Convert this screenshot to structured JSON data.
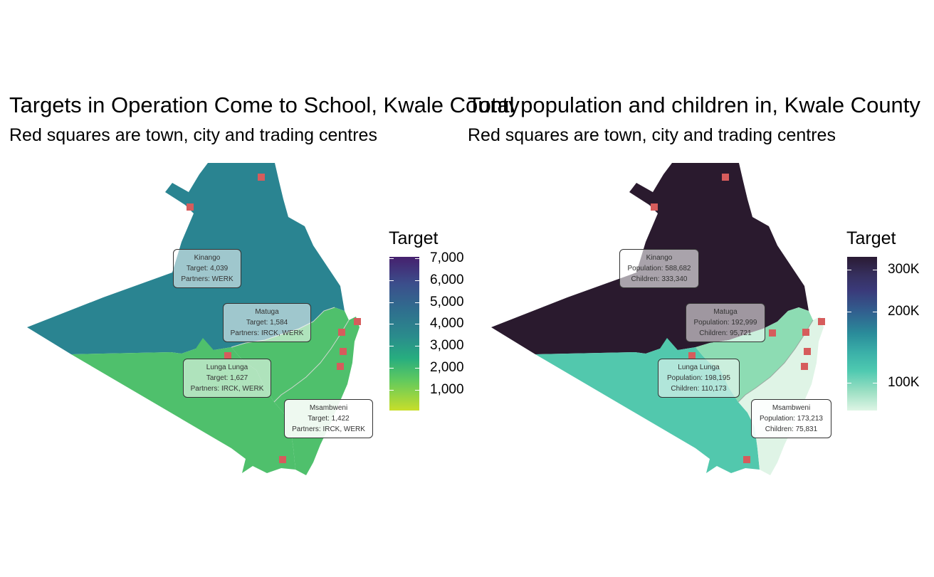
{
  "left": {
    "title": "Targets in Operation Come to School, Kwale County",
    "subtitle": "Red squares are town, city and trading centres",
    "legend": {
      "title": "Target",
      "ticks": [
        "7,000",
        "6,000",
        "5,000",
        "4,000",
        "3,000",
        "2,000",
        "1,000"
      ],
      "colors": {
        "top": "#46206e",
        "mid": "#2a8c8c",
        "bottom": "#c8de2a"
      }
    },
    "regions": [
      {
        "name": "Kinango",
        "color": "#2a8491",
        "lines": [
          "Kinango",
          "Target: 4,039",
          "Partners: WERK"
        ]
      },
      {
        "name": "Matuga",
        "color": "#4fc06c",
        "lines": [
          "Matuga",
          "Target: 1,584",
          "Partners: IRCK, WERK"
        ]
      },
      {
        "name": "Lunga Lunga",
        "color": "#4fc06c",
        "lines": [
          "Lunga Lunga",
          "Target: 1,627",
          "Partners: IRCK, WERK"
        ]
      },
      {
        "name": "Msambweni",
        "color": "#4fc06c",
        "lines": [
          "Msambweni",
          "Target: 1,422",
          "Partners: IRCK, WERK"
        ]
      }
    ]
  },
  "right": {
    "title": "Total population and children in, Kwale County",
    "subtitle": "Red squares are town, city and trading centres",
    "legend": {
      "title": "Target",
      "ticks": [
        "300K",
        "200K",
        "100K"
      ],
      "colors": {
        "top": "#2a1a33",
        "upper": "#3a3a7a",
        "mid": "#2a8c9a",
        "lower": "#4ec9b0",
        "bottom": "#def5e5"
      }
    },
    "regions": [
      {
        "name": "Kinango",
        "color": "#2a1a2e",
        "lines": [
          "Kinango",
          "Population: 588,682",
          "Children: 333,340"
        ]
      },
      {
        "name": "Matuga",
        "color": "#8ddcb3",
        "lines": [
          "Matuga",
          "Population: 192,999",
          "Children: 95,721"
        ]
      },
      {
        "name": "Lunga Lunga",
        "color": "#52c8ad",
        "lines": [
          "Lunga Lunga",
          "Population: 198,195",
          "Children: 110,173"
        ]
      },
      {
        "name": "Msambweni",
        "color": "#dff4e6",
        "lines": [
          "Msambweni",
          "Population: 173,213",
          "Children: 75,831"
        ]
      }
    ]
  },
  "town_marker_color": "#d65c5c"
}
